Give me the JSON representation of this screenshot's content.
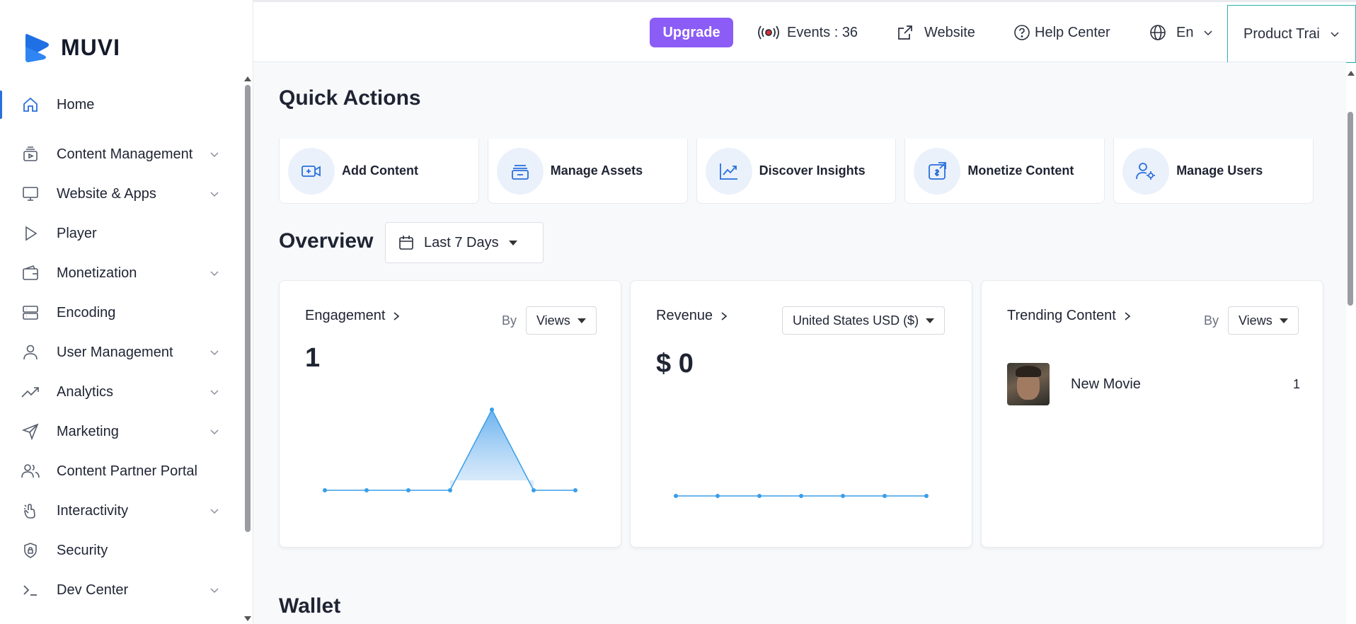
{
  "app": {
    "name": "MUVI"
  },
  "sidebar": {
    "items": [
      {
        "label": "Home",
        "icon": "home-icon",
        "active": true,
        "chevron": false
      },
      {
        "label": "Content Management",
        "icon": "content-management-icon",
        "chevron": true
      },
      {
        "label": "Website & Apps",
        "icon": "monitor-icon",
        "chevron": true
      },
      {
        "label": "Player",
        "icon": "play-icon",
        "chevron": false
      },
      {
        "label": "Monetization",
        "icon": "wallet-icon",
        "chevron": true
      },
      {
        "label": "Encoding",
        "icon": "server-icon",
        "chevron": false
      },
      {
        "label": "User Management",
        "icon": "user-icon",
        "chevron": true
      },
      {
        "label": "Analytics",
        "icon": "trend-icon",
        "chevron": true
      },
      {
        "label": "Marketing",
        "icon": "send-icon",
        "chevron": true
      },
      {
        "label": "Content Partner Portal",
        "icon": "users-icon",
        "chevron": false
      },
      {
        "label": "Interactivity",
        "icon": "hand-icon",
        "chevron": true
      },
      {
        "label": "Security",
        "icon": "shield-icon",
        "chevron": false
      },
      {
        "label": "Dev Center",
        "icon": "terminal-icon",
        "chevron": true
      }
    ]
  },
  "topbar": {
    "upgrade_label": "Upgrade",
    "events_label": "Events : 36",
    "website_label": "Website",
    "help_label": "Help Center",
    "language_label": "En",
    "product_label": "Product Trai"
  },
  "quick_actions": {
    "title": "Quick Actions",
    "items": [
      {
        "label": "Add Content",
        "icon": "add-video-icon"
      },
      {
        "label": "Manage Assets",
        "icon": "assets-icon"
      },
      {
        "label": "Discover Insights",
        "icon": "insights-icon"
      },
      {
        "label": "Monetize Content",
        "icon": "monetize-icon"
      },
      {
        "label": "Manage Users",
        "icon": "manage-users-icon"
      }
    ]
  },
  "overview": {
    "title": "Overview",
    "date_range": "Last 7 Days"
  },
  "engagement": {
    "title": "Engagement",
    "by_label": "By",
    "metric": "Views",
    "value": "1"
  },
  "revenue": {
    "title": "Revenue",
    "currency": "United States USD ($)",
    "value": "$ 0"
  },
  "trending": {
    "title": "Trending Content",
    "by_label": "By",
    "metric": "Views",
    "items": [
      {
        "name": "New Movie",
        "count": "1"
      }
    ]
  },
  "wallet": {
    "title": "Wallet"
  },
  "colors": {
    "accent": "#2a6fdb",
    "upgrade": "#8b5cf6",
    "chart_line": "#3a9ee8"
  },
  "chart_data": [
    {
      "type": "area",
      "x": [
        1,
        2,
        3,
        4,
        5,
        6,
        7
      ],
      "values": [
        0,
        0,
        0,
        0,
        1,
        0,
        0
      ]
    },
    {
      "type": "line",
      "x": [
        1,
        2,
        3,
        4,
        5,
        6,
        7
      ],
      "values": [
        0,
        0,
        0,
        0,
        0,
        0,
        0
      ]
    }
  ]
}
